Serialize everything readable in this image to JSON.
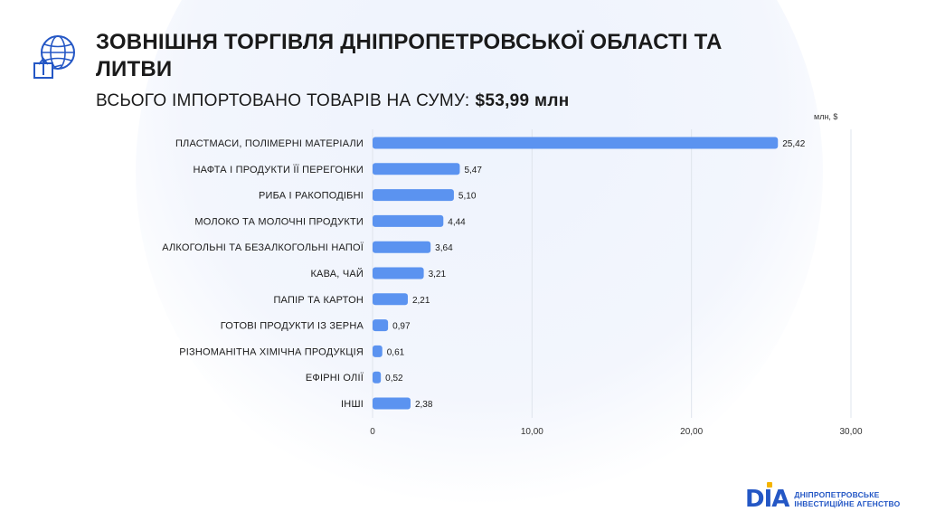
{
  "header": {
    "title": "ЗОВНІШНЯ ТОРГІВЛЯ ДНІПРОПЕТРОВСЬКОЇ ОБЛАСТІ ТА ЛИТВИ",
    "subtitle_label": "ВСЬОГО ІМПОРТОВАНО ТОВАРІВ НА СУМУ:",
    "subtitle_value": "$53,99 млн",
    "icon": "globe-import-icon"
  },
  "chart_data": {
    "type": "bar",
    "orientation": "horizontal",
    "unit_label": "млн, $",
    "categories": [
      "ПЛАСТМАСИ, ПОЛІМЕРНІ МАТЕРІАЛИ",
      "НАФТА І ПРОДУКТИ ЇЇ ПЕРЕГОНКИ",
      "РИБА І РАКОПОДІБНІ",
      "МОЛОКО ТА МОЛОЧНІ ПРОДУКТИ",
      "АЛКОГОЛЬНІ ТА БЕЗАЛКОГОЛЬНІ НАПОЇ",
      "КАВА, ЧАЙ",
      "ПАПІР ТА КАРТОН",
      "ГОТОВІ ПРОДУКТИ ІЗ ЗЕРНА",
      "РІЗНОМАНІТНА ХІМІЧНА ПРОДУКЦІЯ",
      "ЕФІРНІ ОЛІЇ",
      "ІНШІ"
    ],
    "values": [
      25.42,
      5.47,
      5.1,
      4.44,
      3.64,
      3.21,
      2.21,
      0.97,
      0.61,
      0.52,
      2.38
    ],
    "value_labels": [
      "25,42",
      "5,47",
      "5,10",
      "4,44",
      "3,64",
      "3,21",
      "2,21",
      "0,97",
      "0,61",
      "0,52",
      "2,38"
    ],
    "xlim": [
      0,
      30
    ],
    "xticks": [
      0,
      10,
      20,
      30
    ],
    "xtick_labels": [
      "0",
      "10,00",
      "20,00",
      "30,00"
    ],
    "grid": true,
    "bar_color": "#5b93f0"
  },
  "brand": {
    "logo_text": "DIA",
    "line1": "ДНІПРОПЕТРОВСЬКЕ",
    "line2": "ІНВЕСТИЦІЙНЕ АГЕНСТВО",
    "color": "#2457c5",
    "accent": "#f5b400"
  }
}
